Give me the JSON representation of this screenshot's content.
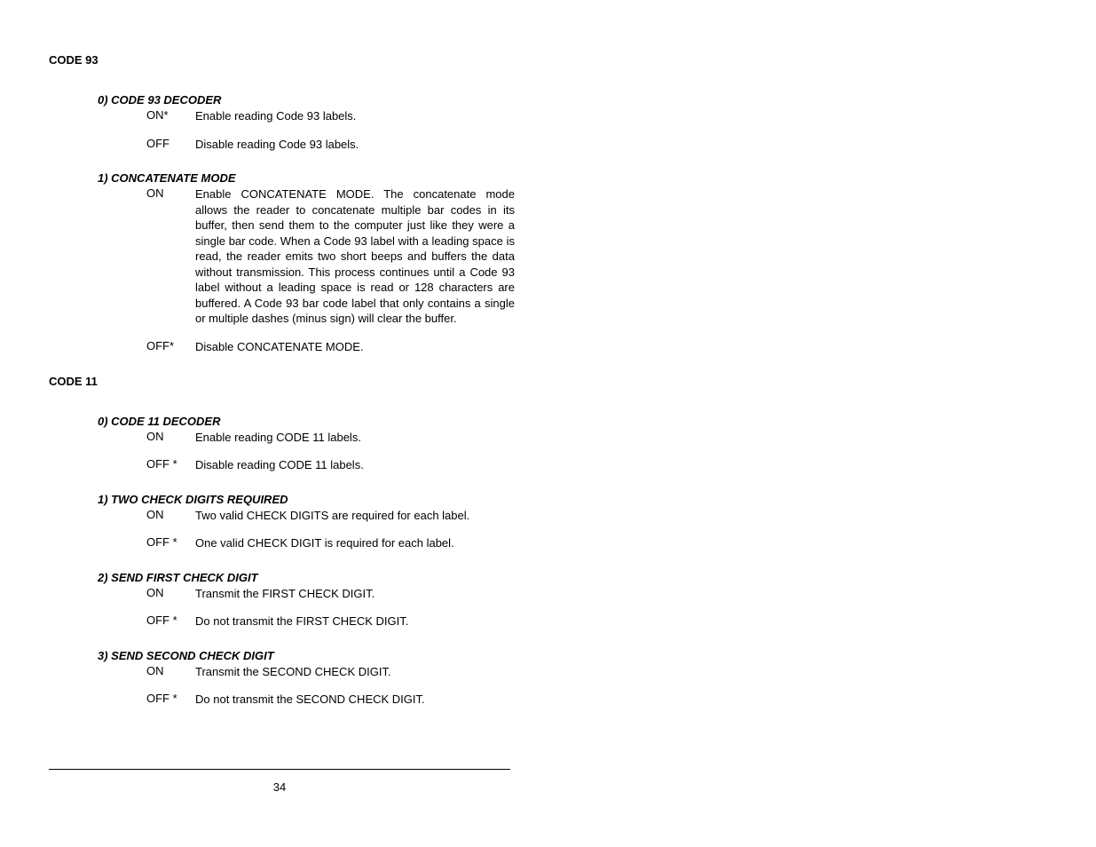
{
  "code93": {
    "header": "CODE 93",
    "sub0": {
      "title": "0) CODE 93 DECODER",
      "on_label": "ON*",
      "on_desc": "Enable reading Code 93 labels.",
      "off_label": "OFF",
      "off_desc": "Disable reading Code 93 labels."
    },
    "sub1": {
      "title": "1) CONCATENATE MODE",
      "on_label": "ON",
      "on_desc": "Enable CONCATENATE MODE.  The concatenate mode allows the reader to concatenate multiple bar codes in its buffer, then send them to the computer just like they were a single bar code.  When a Code 93 label with a leading space is read, the reader emits two short beeps and buffers the data without transmission.  This process continues until a Code 93 label without a leading space is read or 128 characters are buffered.  A Code 93 bar code label that only contains a single or multiple dashes (minus sign) will clear the buffer.",
      "off_label": "OFF*",
      "off_desc": "Disable CONCATENATE MODE."
    }
  },
  "code11": {
    "header": "CODE 11",
    "sub0": {
      "title": "0) CODE 11 DECODER",
      "on_label": "ON",
      "on_desc": "Enable reading CODE 11 labels.",
      "off_label": "OFF *",
      "off_desc": "Disable reading CODE 11 labels."
    },
    "sub1": {
      "title": "1) TWO CHECK DIGITS REQUIRED",
      "on_label": "ON",
      "on_desc": "Two valid CHECK DIGITS are required for each label.",
      "off_label": "OFF *",
      "off_desc": "One valid CHECK DIGIT is required for each label."
    },
    "sub2": {
      "title": "2) SEND FIRST CHECK DIGIT",
      "on_label": "ON",
      "on_desc": "Transmit the FIRST CHECK DIGIT.",
      "off_label": "OFF *",
      "off_desc": "Do not transmit the FIRST CHECK DIGIT."
    },
    "sub3": {
      "title": "3) SEND SECOND CHECK DIGIT",
      "on_label": "ON",
      "on_desc": "Transmit the SECOND CHECK DIGIT.",
      "off_label": "OFF *",
      "off_desc": "Do not transmit the SECOND CHECK DIGIT."
    }
  },
  "page_number": "34"
}
